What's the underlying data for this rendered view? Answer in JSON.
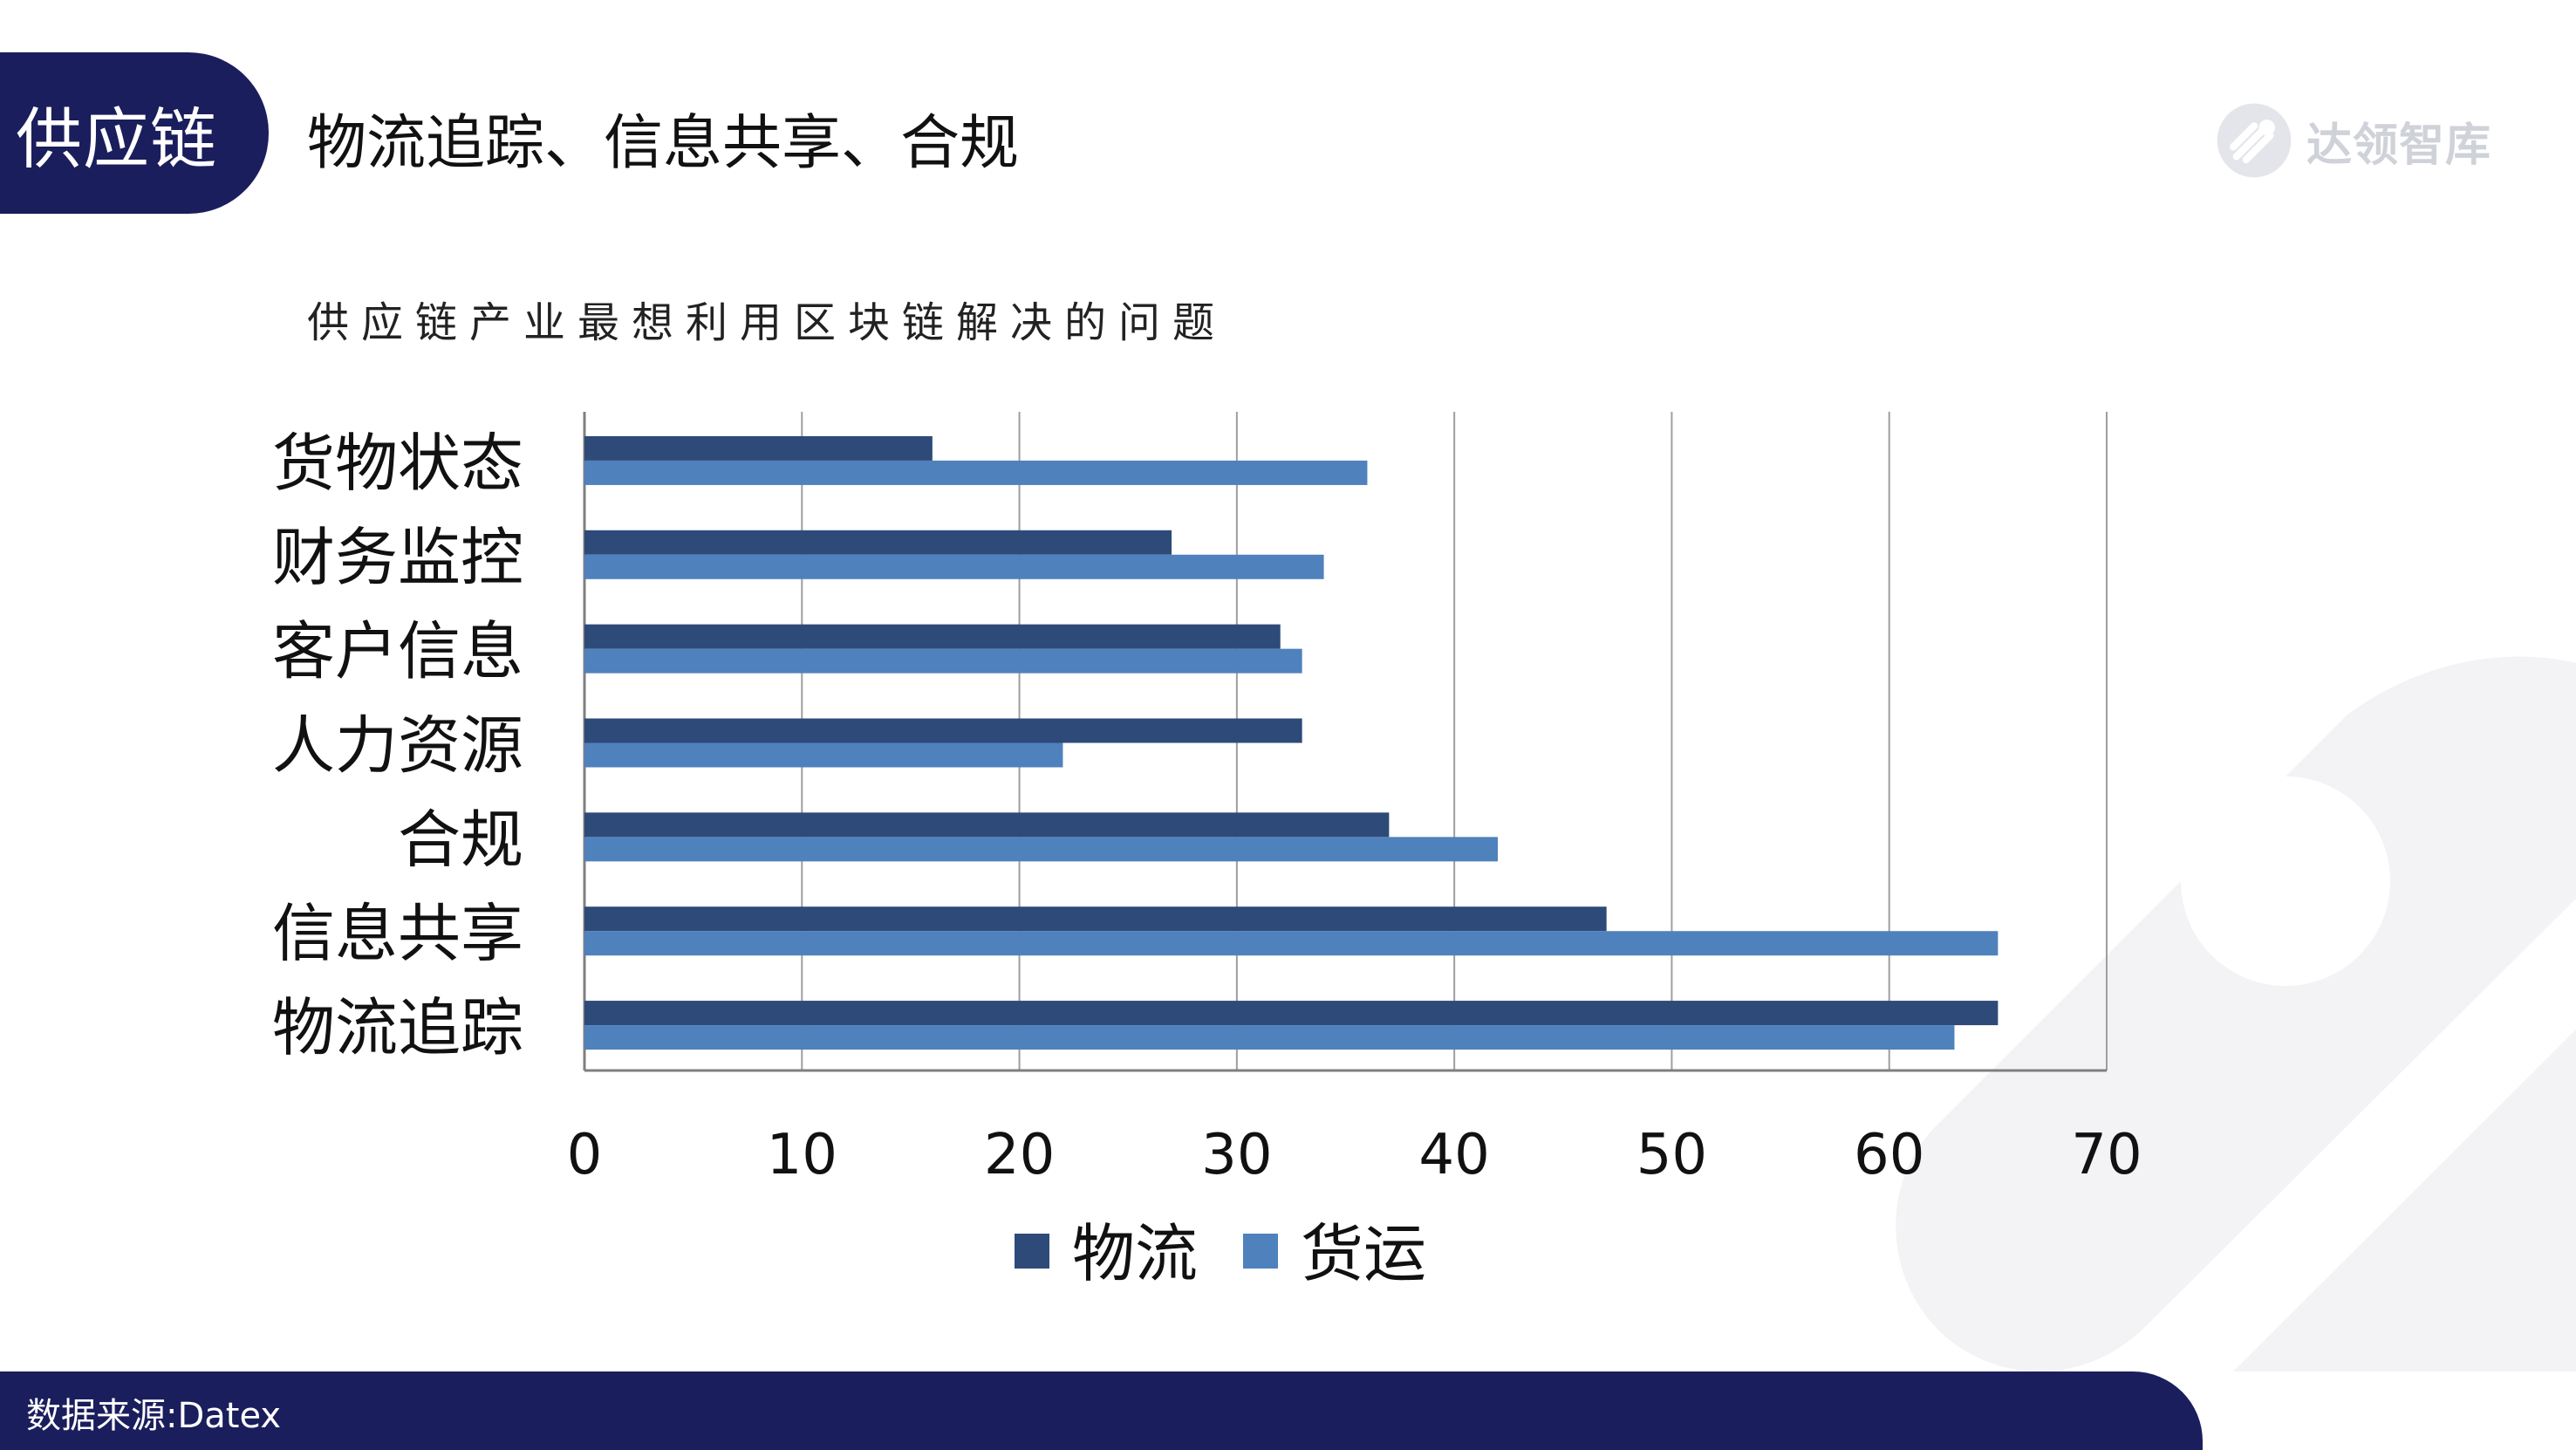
{
  "header": {
    "section_label": "供应链",
    "title": "物流追踪、信息共享、合规"
  },
  "brand": {
    "name": "达领智库",
    "icon": "brand-logo-icon"
  },
  "colors": {
    "navy": "#1b1e5c",
    "series_dark": "#2e4a78",
    "series_light": "#4f81bd",
    "grid": "#9e9e9e",
    "watermark": "#f3f3f5"
  },
  "footer": {
    "source": "数据来源:Datex"
  },
  "chart_data": {
    "type": "bar",
    "orientation": "horizontal",
    "title": "供应链产业最想利用区块链解决的问题",
    "categories": [
      "货物状态",
      "财务监控",
      "客户信息",
      "人力资源",
      "合规",
      "信息共享",
      "物流追踪"
    ],
    "series": [
      {
        "name": "物流",
        "color": "#2e4a78",
        "values": [
          16,
          27,
          32,
          33,
          37,
          47,
          65
        ]
      },
      {
        "name": "货运",
        "color": "#4f81bd",
        "values": [
          36,
          34,
          33,
          22,
          42,
          65,
          63
        ]
      }
    ],
    "xlim": [
      0,
      70
    ],
    "xticks": [
      "0",
      "10",
      "20",
      "30",
      "40",
      "50",
      "60",
      "70"
    ],
    "grid": true,
    "legend": "bottom"
  }
}
